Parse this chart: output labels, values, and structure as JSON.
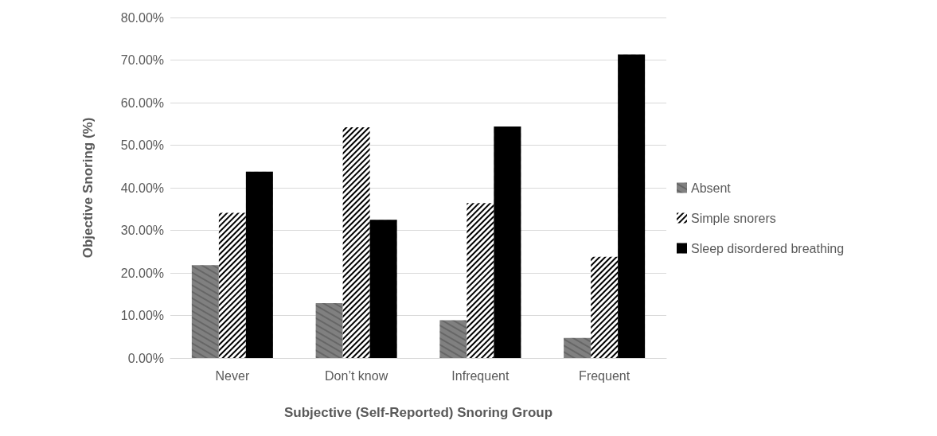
{
  "chart_data": {
    "type": "bar",
    "xlabel": "Subjective (Self-Reported) Snoring Group",
    "ylabel": "Objective Snoring (%)",
    "categories": [
      "Never",
      "Don’t know",
      "Infrequent",
      "Frequent"
    ],
    "series": [
      {
        "name": "Absent",
        "color": "#808080",
        "values": [
          21.8,
          12.9,
          8.9,
          4.7
        ]
      },
      {
        "name": "Simple snorers",
        "color": "#000000",
        "values": [
          34.1,
          54.2,
          36.4,
          23.8
        ]
      },
      {
        "name": "Sleep disordered breathing",
        "color": "#000000",
        "values": [
          43.8,
          32.5,
          54.4,
          71.3
        ]
      }
    ],
    "ylim": [
      0,
      80
    ],
    "yticks": [
      {
        "value": 0,
        "label": "0.00%"
      },
      {
        "value": 10,
        "label": "10.00%"
      },
      {
        "value": 20,
        "label": "20.00%"
      },
      {
        "value": 30,
        "label": "30.00%"
      },
      {
        "value": 40,
        "label": "40.00%"
      },
      {
        "value": 50,
        "label": "50.00%"
      },
      {
        "value": 60,
        "label": "60.00%"
      },
      {
        "value": 70,
        "label": "70.00%"
      },
      {
        "value": 80,
        "label": "80.00%"
      }
    ],
    "grid": "y",
    "legend": "right"
  }
}
